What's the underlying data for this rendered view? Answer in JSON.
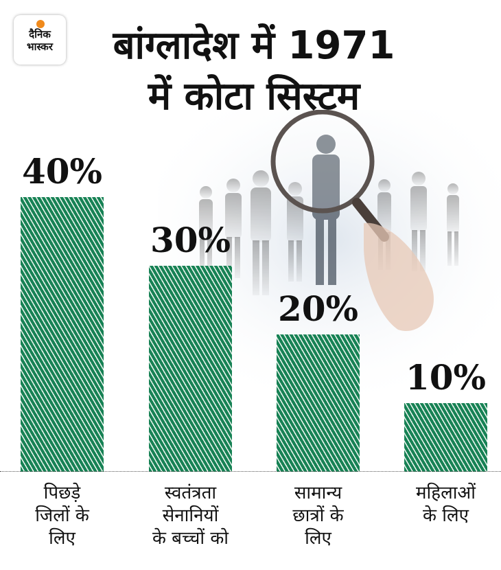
{
  "logo": {
    "line1": "दैनिक",
    "line2": "भास्कर",
    "dot_color": "#f08a1c"
  },
  "title": {
    "line1": "बांग्लादेश में 1971",
    "line2": "में कोटा सिस्टम"
  },
  "colors": {
    "bar": "#178255",
    "text": "#111111"
  },
  "chart_data": {
    "type": "bar",
    "title": "बांग्लादेश में 1971 में कोटा सिस्टम",
    "categories": [
      "पिछड़े जिलों के लिए",
      "स्वतंत्रता सेनानियों के बच्चों को",
      "सामान्य छात्रों के लिए",
      "महिलाओं के लिए"
    ],
    "category_lines": [
      [
        "पिछड़े",
        "जिलों के",
        "लिए"
      ],
      [
        "स्वतंत्रता",
        "सेनानियों",
        "के बच्चों को"
      ],
      [
        "सामान्य",
        "छात्रों के",
        "लिए"
      ],
      [
        "महिलाओं",
        "के लिए"
      ]
    ],
    "values": [
      40,
      30,
      20,
      10
    ],
    "value_labels": [
      "40%",
      "30%",
      "20%",
      "10%"
    ],
    "unit": "%",
    "ylim": [
      0,
      40
    ],
    "grid": false,
    "legend": "none"
  }
}
